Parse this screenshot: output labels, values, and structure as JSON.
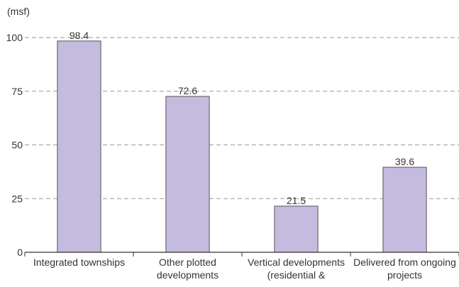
{
  "chart_data": {
    "type": "bar",
    "title": "",
    "xlabel": "",
    "ylabel": "(msf)",
    "ylim": [
      0,
      100
    ],
    "yticks": [
      0,
      25,
      50,
      75,
      100
    ],
    "grid": true,
    "categories": [
      [
        "Integrated townships"
      ],
      [
        "Other plotted",
        "developments"
      ],
      [
        "Vertical developments",
        "(residential &"
      ],
      [
        "Delivered from ongoing",
        "projects"
      ]
    ],
    "values": [
      98.4,
      72.6,
      21.5,
      39.6
    ],
    "value_labels": [
      "98.4",
      "72.6",
      "21.5",
      "39.6"
    ],
    "colors": {
      "bar": "#c4bbdf",
      "bar_border": "#555555",
      "grid": "#9a9a9a",
      "axis": "#333333"
    }
  }
}
